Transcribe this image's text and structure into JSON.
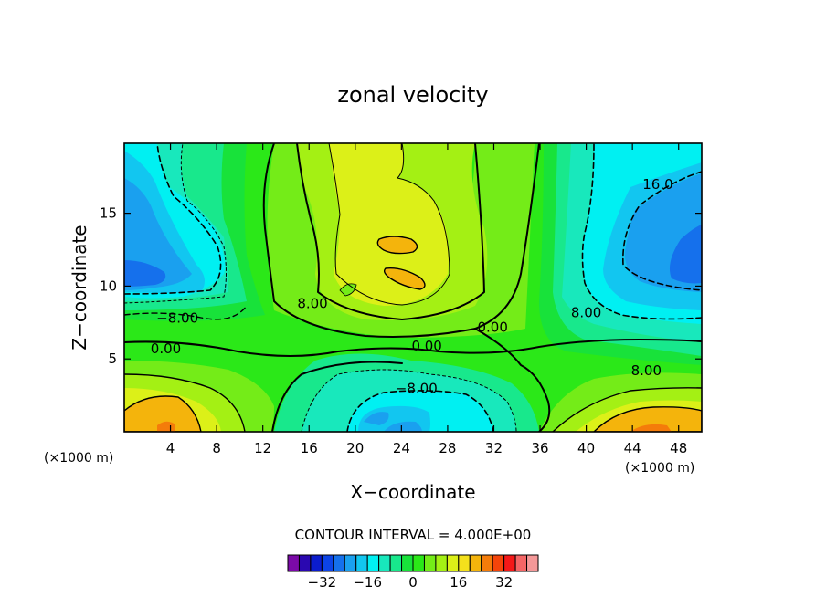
{
  "chart_data": {
    "type": "contour",
    "title": "zonal velocity",
    "xlabel": "X−coordinate",
    "ylabel": "Z−coordinate",
    "x_unit_label": "(×1000 m)",
    "y_unit_label": "(×1000 m)",
    "xlim": [
      0,
      50
    ],
    "ylim": [
      0,
      19.8
    ],
    "x_ticks": [
      4,
      8,
      12,
      16,
      20,
      24,
      28,
      32,
      36,
      40,
      44,
      48
    ],
    "y_ticks": [
      5,
      10,
      15
    ],
    "contour_interval_text": "CONTOUR INTERVAL = 4.000E+00",
    "contour_labels": [
      {
        "text": "16.0",
        "x": 46.2,
        "y": 16.8
      },
      {
        "text": "−8.00",
        "x": 4.6,
        "y": 7.6
      },
      {
        "text": "0.00",
        "x": 3.6,
        "y": 5.5
      },
      {
        "text": "8.00",
        "x": 16.3,
        "y": 8.6
      },
      {
        "text": "0.00",
        "x": 26.2,
        "y": 5.7
      },
      {
        "text": "0.00",
        "x": 31.9,
        "y": 7.0
      },
      {
        "text": "−8.00",
        "x": 25.3,
        "y": 2.8
      },
      {
        "text": "8.00",
        "x": 40.0,
        "y": 8.0
      },
      {
        "text": "8.00",
        "x": 45.2,
        "y": 4.0
      }
    ],
    "colorbar": {
      "levels": [
        -40,
        -36,
        -32,
        -28,
        -24,
        -20,
        -16,
        -12,
        -8,
        -4,
        0,
        4,
        8,
        12,
        16,
        20,
        24,
        28,
        32,
        36,
        40
      ],
      "tick_values": [
        -32,
        -16,
        0,
        16,
        32
      ],
      "tick_labels": [
        "−32",
        "−16",
        "0",
        "16",
        "32"
      ],
      "colors": [
        "#7b0aa8",
        "#2a08b0",
        "#0b1ccd",
        "#0c44e6",
        "#1570ec",
        "#1aa0ef",
        "#12c6f0",
        "#00f0f2",
        "#18e8bc",
        "#18e88c",
        "#18e23a",
        "#2be818",
        "#74ec18",
        "#a4f014",
        "#dcf018",
        "#f4e01c",
        "#f4b40c",
        "#f47c0a",
        "#f4440a",
        "#f41818",
        "#f46666",
        "#f49898"
      ]
    }
  }
}
